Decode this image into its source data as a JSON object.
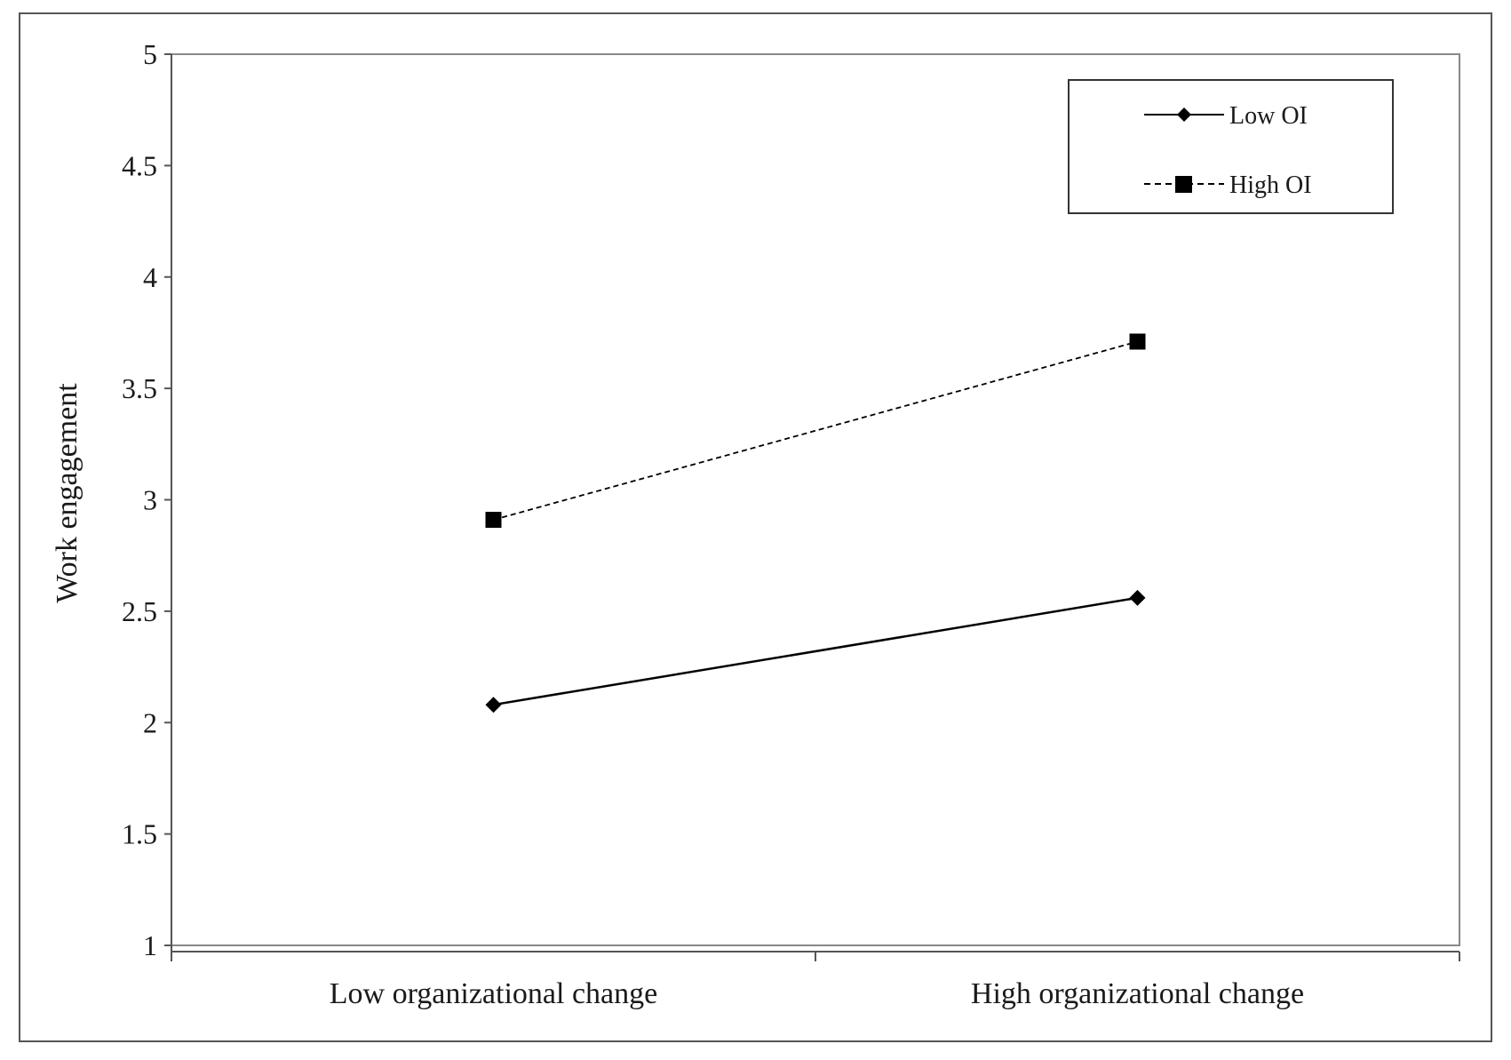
{
  "chart_data": {
    "type": "line",
    "title": "",
    "xlabel": "",
    "ylabel": "Work engagement",
    "categories": [
      "Low organizational change",
      "High organizational change"
    ],
    "ylim": [
      1,
      5
    ],
    "yticks": [
      "1",
      "1.5",
      "2",
      "2.5",
      "3",
      "3.5",
      "4",
      "4.5",
      "5"
    ],
    "grid": false,
    "legend_position": "top-right",
    "series": [
      {
        "name": "Low OI",
        "values": [
          2.08,
          2.56
        ],
        "line_style": "solid",
        "marker": "diamond",
        "color": "#000000"
      },
      {
        "name": "High OI",
        "values": [
          2.91,
          3.71
        ],
        "line_style": "dashed",
        "marker": "square",
        "color": "#000000"
      }
    ]
  }
}
